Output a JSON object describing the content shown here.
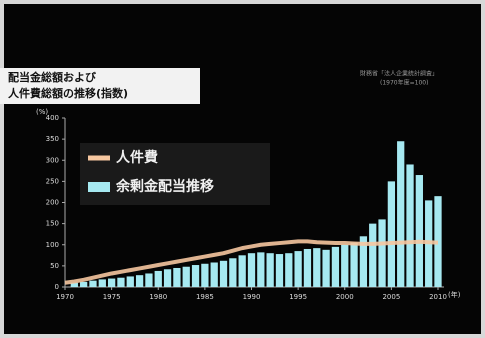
{
  "chart_data": {
    "type": "bar_line",
    "title": [
      "配当金総額および",
      "人件費総額の推移(指数)"
    ],
    "subtitle": [
      "財務省「法人企業統計調査」",
      "(1970年度=100)"
    ],
    "y_unit": "(%)",
    "x_unit": "(年)",
    "x": [
      1970,
      1971,
      1972,
      1973,
      1974,
      1975,
      1976,
      1977,
      1978,
      1979,
      1980,
      1981,
      1982,
      1983,
      1984,
      1985,
      1986,
      1987,
      1988,
      1989,
      1990,
      1991,
      1992,
      1993,
      1994,
      1995,
      1996,
      1997,
      1998,
      1999,
      2000,
      2001,
      2002,
      2003,
      2004,
      2005,
      2006,
      2007,
      2008,
      2009,
      2010
    ],
    "series": [
      {
        "name": "余剰金配当推移",
        "type": "bar",
        "color": "#a6e9f1",
        "values": [
          null,
          10,
          12,
          15,
          18,
          20,
          22,
          25,
          28,
          32,
          38,
          42,
          45,
          48,
          52,
          55,
          58,
          62,
          68,
          75,
          80,
          82,
          80,
          78,
          80,
          85,
          90,
          92,
          88,
          95,
          100,
          105,
          120,
          150,
          160,
          250,
          345,
          290,
          265,
          205,
          215
        ]
      },
      {
        "name": "人件費",
        "type": "line",
        "color": "#f6c7a0",
        "values": [
          10,
          13,
          17,
          22,
          27,
          32,
          36,
          40,
          44,
          48,
          52,
          56,
          60,
          64,
          68,
          72,
          76,
          80,
          86,
          92,
          96,
          100,
          102,
          104,
          106,
          108,
          108,
          106,
          105,
          104,
          104,
          103,
          102,
          102,
          103,
          104,
          105,
          106,
          107,
          106,
          105
        ]
      }
    ],
    "xlim": [
      1970,
      2010
    ],
    "xticks": [
      1970,
      1975,
      1980,
      1985,
      1990,
      1995,
      2000,
      2005,
      2010
    ],
    "ylim": [
      0,
      400
    ],
    "yticks": [
      0,
      50,
      100,
      150,
      200,
      250,
      300,
      350,
      400
    ]
  }
}
